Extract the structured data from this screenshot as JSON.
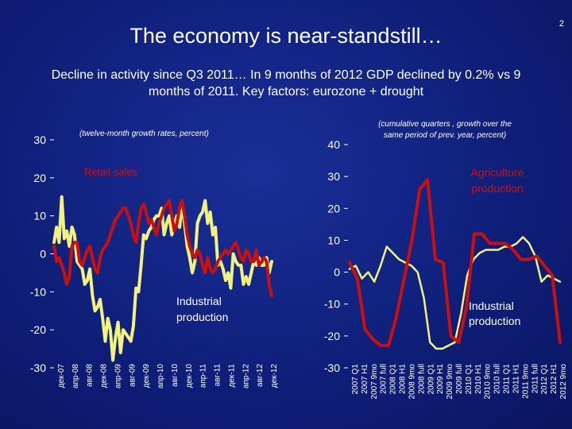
{
  "slide": {
    "page_number": "2",
    "title": "The economy is near-standstill…",
    "subtitle": "Decline in activity since Q3 2011… In 9 months of 2012 GDP declined by 0.2% vs 9 months of 2011. Key factors: eurozone + drought"
  },
  "colors": {
    "yellow": "#f2f280",
    "red": "#c81010",
    "background": "#13248a"
  },
  "chart_data": [
    {
      "type": "line",
      "note": "(twelve-month growth rates, percent)",
      "ylim": [
        -30,
        30
      ],
      "y_ticks": [
        "30",
        "20",
        "10",
        "0",
        "-10",
        "-20",
        "-30"
      ],
      "x_tick_labels": [
        "дек-07",
        "апр-08",
        "авг-08",
        "дек-08",
        "апр-09",
        "авг-09",
        "дек-09",
        "апр-10",
        "авг-10",
        "дек-10",
        "апр-11",
        "авг-11",
        "дек-11",
        "апр-12",
        "авг-12",
        "дек-12"
      ],
      "series": [
        {
          "name": "Retail sales",
          "color": "#c81010",
          "values": [
            2,
            -2,
            -1,
            -3,
            -5,
            -8,
            -6,
            2,
            3,
            3,
            -2,
            -3,
            -1,
            1,
            2,
            -1,
            -4,
            -5,
            -1,
            1,
            2,
            3,
            5,
            7,
            9,
            10,
            11,
            12,
            12,
            10,
            8,
            5,
            3,
            8,
            12,
            13,
            11,
            8,
            9,
            7,
            5,
            8,
            10,
            12,
            13,
            14,
            10,
            6,
            8,
            12,
            14,
            10,
            5,
            2,
            0,
            -1,
            1,
            0,
            -3,
            -5,
            -1,
            -4,
            -5,
            -4,
            -2,
            -1,
            0,
            1,
            0,
            1,
            2,
            3,
            1,
            -1,
            -2,
            1,
            0,
            -2,
            -2,
            1,
            -3,
            -2,
            -1,
            -2,
            -8,
            -11
          ]
        },
        {
          "name": "Industrial production",
          "color": "#f2f280",
          "values": [
            3,
            7,
            3,
            15,
            4,
            6,
            2,
            7,
            5,
            -2,
            -3,
            -4,
            -8,
            -7,
            -4,
            -11,
            -15,
            -14,
            -12,
            -17,
            -23,
            -17,
            -20,
            -28,
            -22,
            -18,
            -26,
            -20,
            -21,
            -22,
            -23,
            -19,
            -9,
            -10,
            -3,
            5,
            4,
            6,
            7,
            9,
            10,
            10,
            12,
            5,
            8,
            10,
            5,
            8,
            10,
            7,
            13,
            8,
            2,
            -1,
            -5,
            -2,
            8,
            10,
            11,
            14,
            8,
            11,
            5,
            7,
            -3,
            -2,
            -4,
            -7,
            -5,
            -9,
            0,
            -2,
            -3,
            -3,
            -8,
            -6,
            -8,
            -5,
            -2,
            -3,
            -1,
            -3,
            -3,
            -1,
            -5,
            -2
          ]
        }
      ]
    },
    {
      "type": "line",
      "note": "(cumulative quarters , growth over the same period of prev. year, percent)",
      "ylim": [
        -30,
        40
      ],
      "y_ticks": [
        "40",
        "30",
        "20",
        "10",
        "0",
        "-10",
        "-20",
        "-30"
      ],
      "x_tick_labels": [
        "2007 Q1",
        "2007 H1",
        "2007 9mo",
        "2007 full",
        "2008 Q1",
        "2008 H1",
        "2008 9mo",
        "2008 full",
        "2009 Q1",
        "2009 H1",
        "2009 9mo",
        "2009 full",
        "2010 Q1",
        "2010 H1",
        "2010 9mo",
        "2010 full",
        "2011 Q1",
        "2011 H1",
        "2011 9mo",
        "2011 full",
        "2012 Q1",
        "2012 H1",
        "2012 9mo"
      ],
      "series": [
        {
          "name": "Agriculture production",
          "color": "#c81010",
          "values": [
            3,
            -2,
            -18,
            -21,
            -23,
            -23,
            -14,
            -2,
            10,
            26,
            29,
            4,
            3,
            -20,
            -22,
            -11,
            12,
            12,
            9,
            9,
            9,
            7,
            4,
            4,
            5,
            2,
            -1,
            -22
          ]
        },
        {
          "name": "Industrial production",
          "color": "#f2f280",
          "values": [
            1,
            2,
            -2,
            0,
            -3,
            2,
            8,
            6,
            4,
            3,
            2,
            0,
            -8,
            -22,
            -24,
            -24,
            -23,
            -22,
            -13,
            -1,
            4,
            6,
            7,
            7,
            7,
            8,
            8,
            9,
            11,
            9,
            5,
            -3,
            -1,
            -2,
            -3
          ]
        }
      ]
    }
  ]
}
